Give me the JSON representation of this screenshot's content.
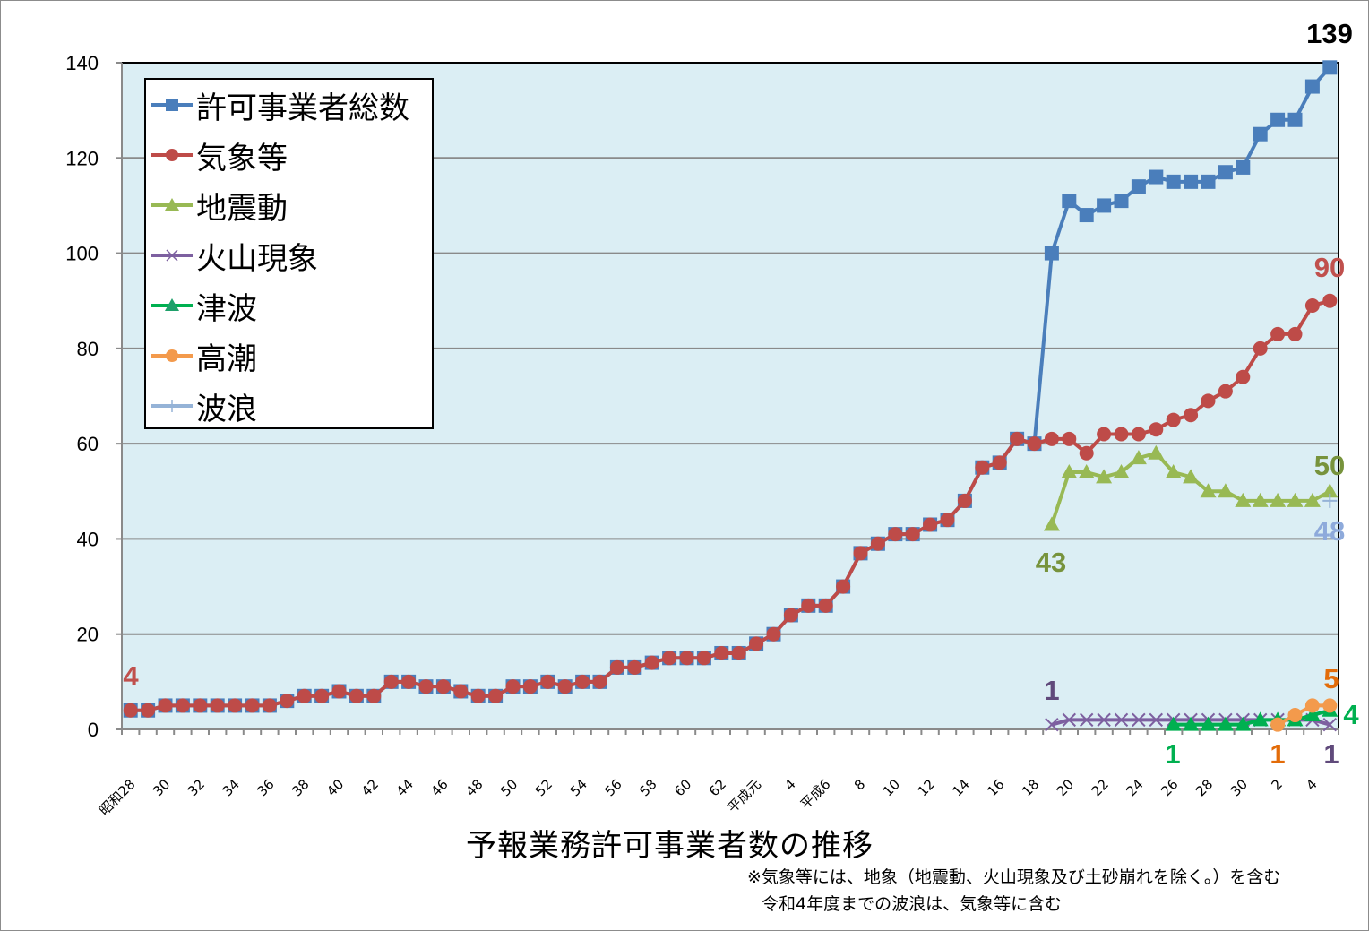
{
  "chart_data": {
    "type": "line",
    "title": "予報業務許可事業者数の推移",
    "notes": [
      "※気象等には、地象（地震動、火山現象及び土砂崩れを除く。）を含む",
      "令和4年度までの波浪は、気象等に含む"
    ],
    "ylim": [
      0,
      140
    ],
    "yticks": [
      0,
      20,
      40,
      60,
      80,
      100,
      120,
      140
    ],
    "grid": true,
    "legend_position": "top-left",
    "x_tick_labels": [
      "昭和28",
      "",
      "30",
      "",
      "32",
      "",
      "34",
      "",
      "36",
      "",
      "38",
      "",
      "40",
      "",
      "42",
      "",
      "44",
      "",
      "46",
      "",
      "48",
      "",
      "50",
      "",
      "52",
      "",
      "54",
      "",
      "56",
      "",
      "58",
      "",
      "60",
      "",
      "62",
      "",
      "平成元",
      "",
      "4",
      "",
      "平成6",
      "",
      "8",
      "",
      "10",
      "",
      "12",
      "",
      "14",
      "",
      "16",
      "",
      "18",
      "",
      "20",
      "",
      "22",
      "",
      "24",
      "",
      "26",
      "",
      "28",
      "",
      "30",
      "",
      "2",
      "",
      "4",
      ""
    ],
    "series": [
      {
        "name": "許可事業者総数",
        "color": "#4a7ebb",
        "marker": "square",
        "values": [
          4,
          4,
          5,
          5,
          5,
          5,
          5,
          5,
          5,
          6,
          7,
          7,
          8,
          7,
          7,
          10,
          10,
          9,
          9,
          8,
          7,
          7,
          9,
          9,
          10,
          9,
          10,
          10,
          13,
          13,
          14,
          15,
          15,
          15,
          16,
          16,
          18,
          20,
          24,
          26,
          26,
          30,
          37,
          39,
          41,
          41,
          43,
          44,
          48,
          55,
          56,
          61,
          60,
          100,
          111,
          108,
          110,
          111,
          114,
          116,
          115,
          115,
          115,
          117,
          118,
          125,
          128,
          128,
          135,
          139
        ]
      },
      {
        "name": "気象等",
        "color": "#be4b48",
        "marker": "circle",
        "values": [
          4,
          4,
          5,
          5,
          5,
          5,
          5,
          5,
          5,
          6,
          7,
          7,
          8,
          7,
          7,
          10,
          10,
          9,
          9,
          8,
          7,
          7,
          9,
          9,
          10,
          9,
          10,
          10,
          13,
          13,
          14,
          15,
          15,
          15,
          16,
          16,
          18,
          20,
          24,
          26,
          26,
          30,
          37,
          39,
          41,
          41,
          43,
          44,
          48,
          55,
          56,
          61,
          60,
          61,
          61,
          58,
          62,
          62,
          62,
          63,
          65,
          66,
          69,
          71,
          74,
          80,
          83,
          83,
          89,
          90
        ]
      },
      {
        "name": "地震動",
        "color": "#98b954",
        "marker": "triangle",
        "values": [
          null,
          null,
          null,
          null,
          null,
          null,
          null,
          null,
          null,
          null,
          null,
          null,
          null,
          null,
          null,
          null,
          null,
          null,
          null,
          null,
          null,
          null,
          null,
          null,
          null,
          null,
          null,
          null,
          null,
          null,
          null,
          null,
          null,
          null,
          null,
          null,
          null,
          null,
          null,
          null,
          null,
          null,
          null,
          null,
          null,
          null,
          null,
          null,
          null,
          null,
          null,
          null,
          null,
          43,
          54,
          54,
          53,
          54,
          57,
          58,
          54,
          53,
          50,
          50,
          48,
          48,
          48,
          48,
          48,
          50
        ]
      },
      {
        "name": "火山現象",
        "color": "#7d60a0",
        "marker": "x",
        "values": [
          null,
          null,
          null,
          null,
          null,
          null,
          null,
          null,
          null,
          null,
          null,
          null,
          null,
          null,
          null,
          null,
          null,
          null,
          null,
          null,
          null,
          null,
          null,
          null,
          null,
          null,
          null,
          null,
          null,
          null,
          null,
          null,
          null,
          null,
          null,
          null,
          null,
          null,
          null,
          null,
          null,
          null,
          null,
          null,
          null,
          null,
          null,
          null,
          null,
          null,
          null,
          null,
          null,
          1,
          2,
          2,
          2,
          2,
          2,
          2,
          2,
          2,
          2,
          2,
          2,
          2,
          2,
          2,
          2,
          1
        ]
      },
      {
        "name": "津波",
        "color": "#00b050",
        "marker": "triangle",
        "values": [
          null,
          null,
          null,
          null,
          null,
          null,
          null,
          null,
          null,
          null,
          null,
          null,
          null,
          null,
          null,
          null,
          null,
          null,
          null,
          null,
          null,
          null,
          null,
          null,
          null,
          null,
          null,
          null,
          null,
          null,
          null,
          null,
          null,
          null,
          null,
          null,
          null,
          null,
          null,
          null,
          null,
          null,
          null,
          null,
          null,
          null,
          null,
          null,
          null,
          null,
          null,
          null,
          null,
          null,
          null,
          null,
          null,
          null,
          null,
          null,
          1,
          1,
          1,
          1,
          1,
          2,
          2,
          2,
          3,
          4
        ]
      },
      {
        "name": "高潮",
        "color": "#f39a4c",
        "marker": "circle",
        "values": [
          null,
          null,
          null,
          null,
          null,
          null,
          null,
          null,
          null,
          null,
          null,
          null,
          null,
          null,
          null,
          null,
          null,
          null,
          null,
          null,
          null,
          null,
          null,
          null,
          null,
          null,
          null,
          null,
          null,
          null,
          null,
          null,
          null,
          null,
          null,
          null,
          null,
          null,
          null,
          null,
          null,
          null,
          null,
          null,
          null,
          null,
          null,
          null,
          null,
          null,
          null,
          null,
          null,
          null,
          null,
          null,
          null,
          null,
          null,
          null,
          null,
          null,
          null,
          null,
          null,
          null,
          1,
          3,
          5,
          5
        ]
      },
      {
        "name": "波浪",
        "color": "#95b3d7",
        "marker": "plus",
        "values": [
          null,
          null,
          null,
          null,
          null,
          null,
          null,
          null,
          null,
          null,
          null,
          null,
          null,
          null,
          null,
          null,
          null,
          null,
          null,
          null,
          null,
          null,
          null,
          null,
          null,
          null,
          null,
          null,
          null,
          null,
          null,
          null,
          null,
          null,
          null,
          null,
          null,
          null,
          null,
          null,
          null,
          null,
          null,
          null,
          null,
          null,
          null,
          null,
          null,
          null,
          null,
          null,
          null,
          null,
          null,
          null,
          null,
          null,
          null,
          null,
          null,
          null,
          null,
          null,
          null,
          null,
          null,
          null,
          null,
          48
        ]
      }
    ],
    "data_labels": [
      {
        "series": "気象等",
        "text": "4",
        "color": "#c0504d"
      },
      {
        "series": "許可事業者総数",
        "text": "139",
        "color": "#000000"
      },
      {
        "series": "気象等",
        "text": "90",
        "color": "#c0504d"
      },
      {
        "series": "地震動",
        "text": "50",
        "color": "#77933c"
      },
      {
        "series": "波浪",
        "text": "48",
        "color": "#8eaadb"
      },
      {
        "series": "地震動",
        "text": "43",
        "color": "#77933c"
      },
      {
        "series": "火山現象",
        "text": "1",
        "color": "#604a7b"
      },
      {
        "series": "高潮",
        "text": "5",
        "color": "#e36c09"
      },
      {
        "series": "津波",
        "text": "4",
        "color": "#00b050"
      },
      {
        "series": "津波",
        "text": "1",
        "color": "#00b050"
      },
      {
        "series": "高潮",
        "text": "1",
        "color": "#e36c09"
      },
      {
        "series": "火山現象",
        "text": "1",
        "color": "#604a7b"
      }
    ]
  }
}
